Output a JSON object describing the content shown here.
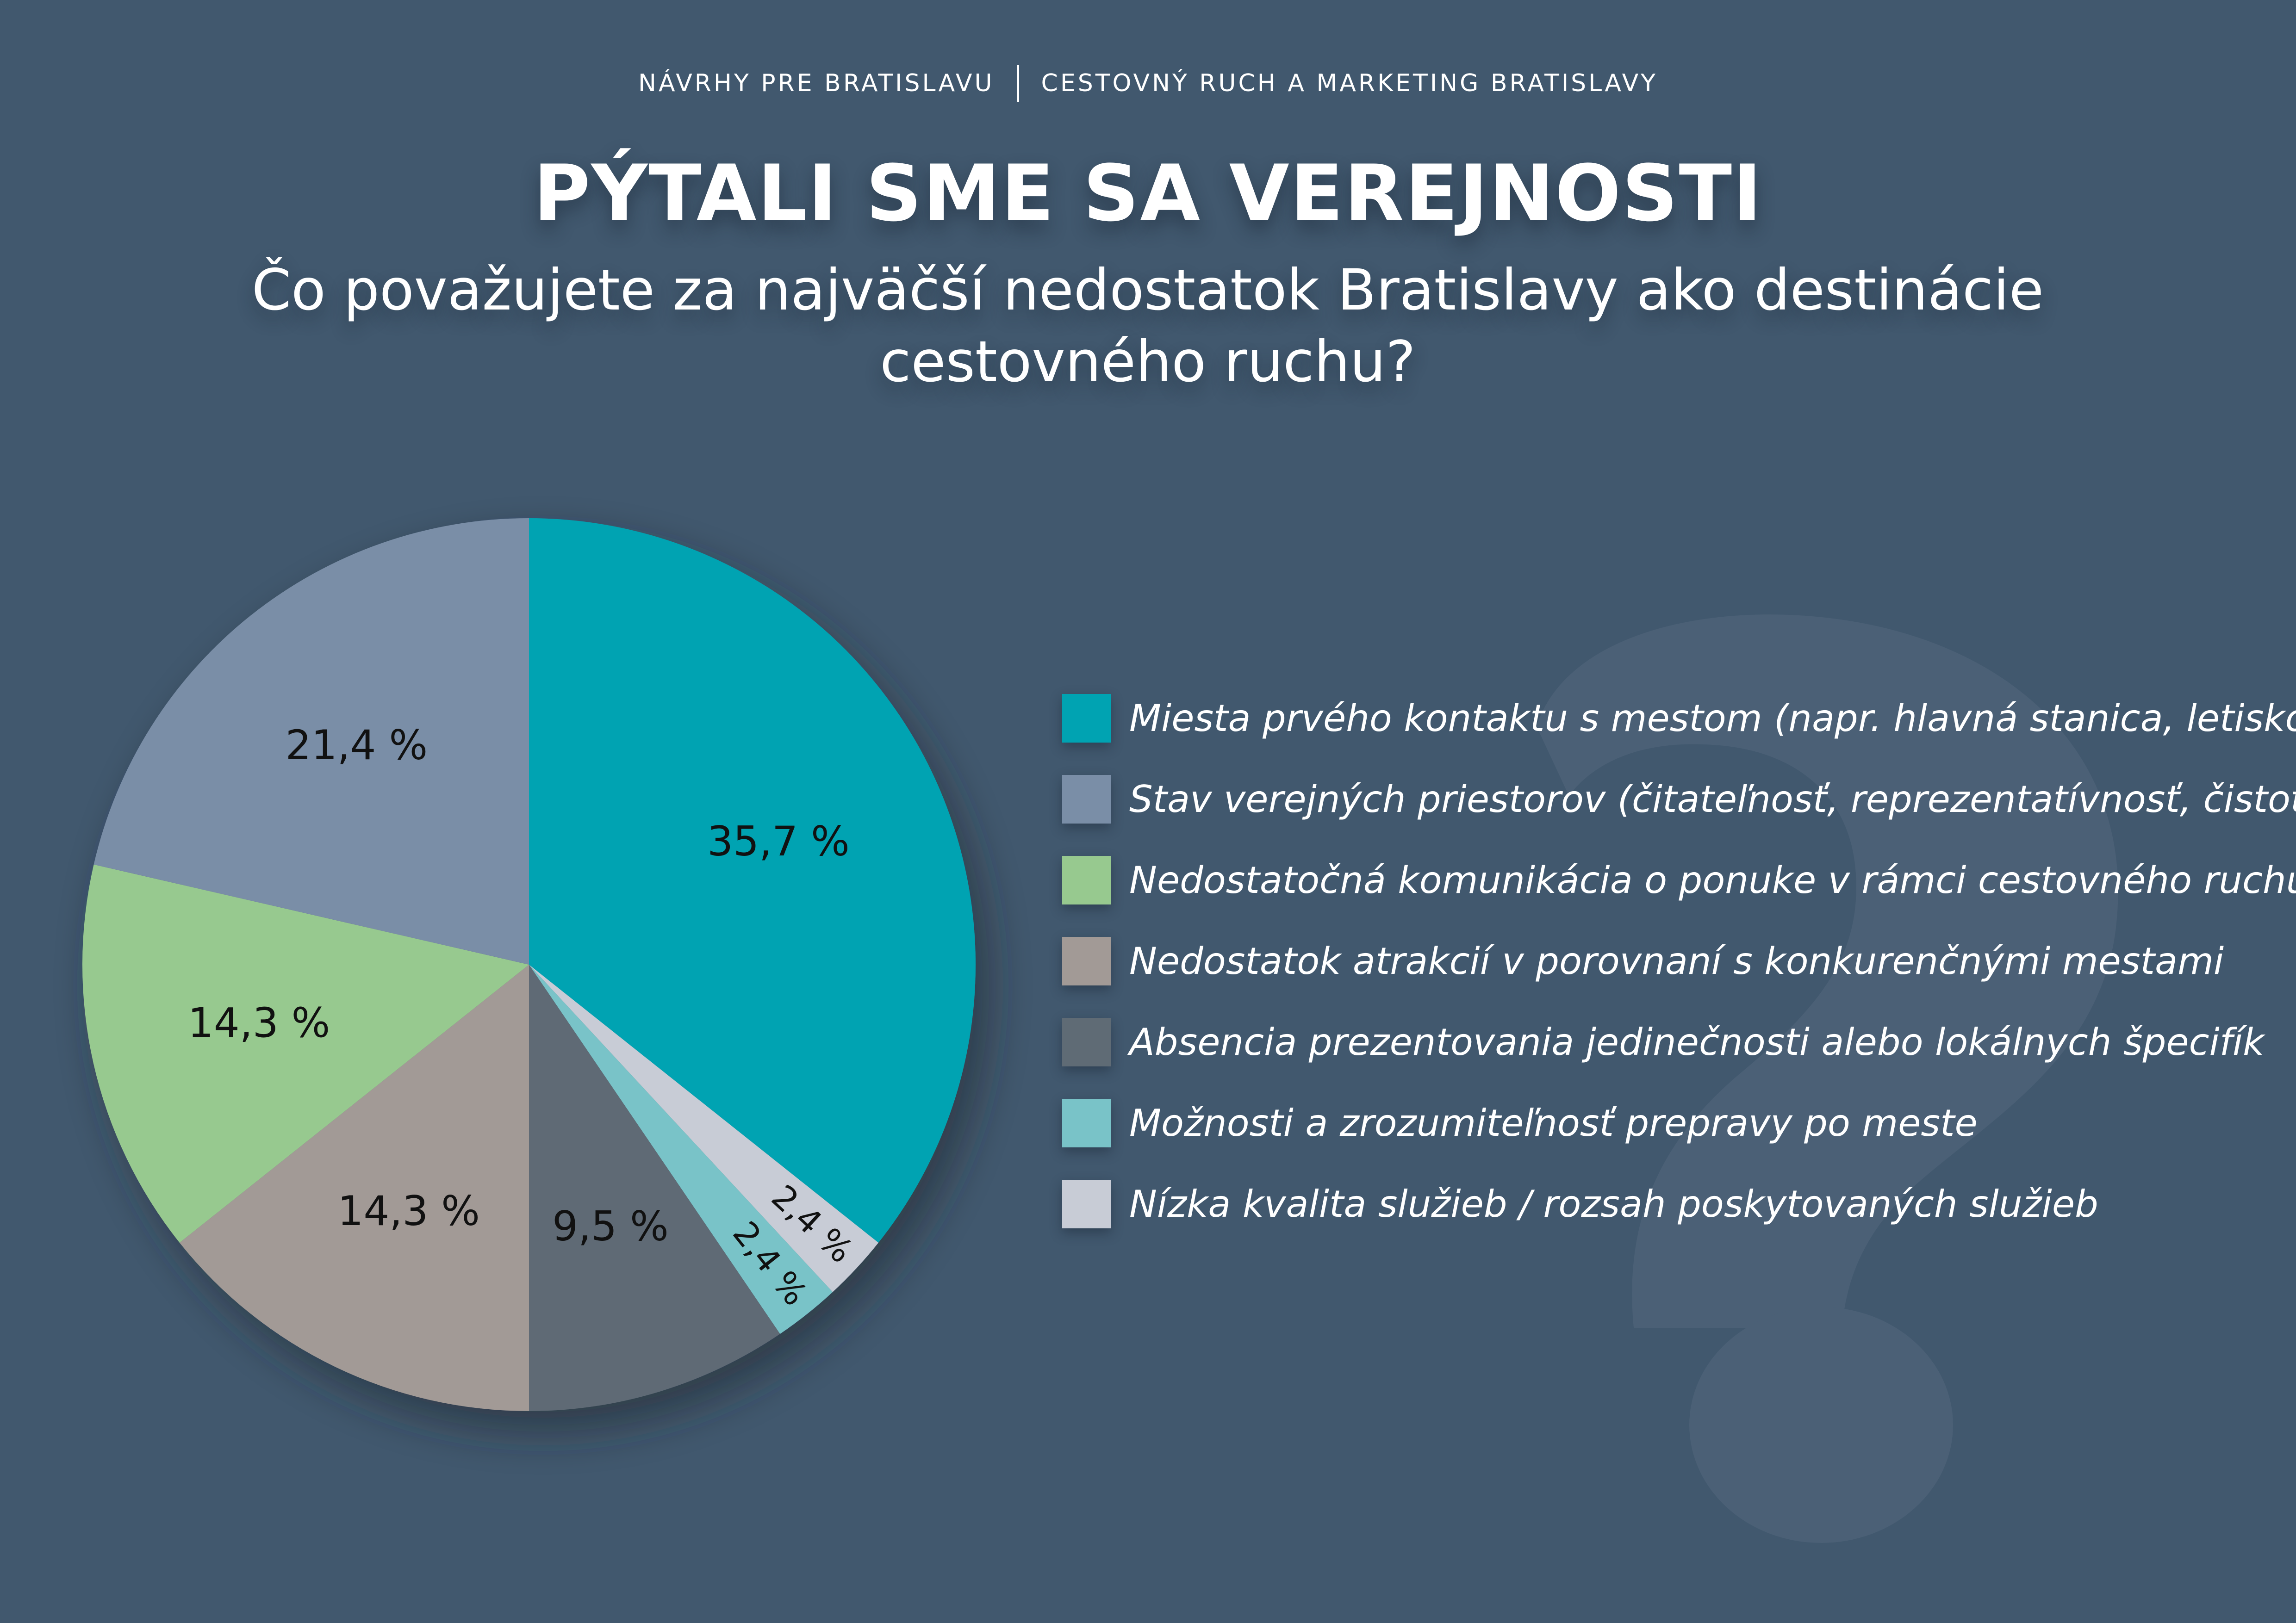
{
  "header": {
    "left": "NÁVRHY PRE BRATISLAVU",
    "right": "CESTOVNÝ RUCH A MARKETING BRATISLAVY"
  },
  "title": "PÝTALI SME SA VEREJNOSTI",
  "question": "Čo považujete za najväčší nedostatok Bratislavy ako destinácie cestovného ruchu?",
  "chart_data": {
    "type": "pie",
    "title": "",
    "value_suffix": " %",
    "series": [
      {
        "values": [
          {
            "label": "Miesta prvého kontaktu s mestom (napr. hlavná stanica, letisko, ...)",
            "value": 35.7,
            "display": "35,7 %",
            "color": "#00a3b2"
          },
          {
            "label": "Nízka kvalita služieb / rozsah  poskytovaných služieb",
            "value": 2.4,
            "display": "2,4 %",
            "color": "#c8ccd6"
          },
          {
            "label": "Možnosti a zrozumiteľnosť prepravy po meste",
            "value": 2.4,
            "display": "2,4 %",
            "color": "#79c3c8"
          },
          {
            "label": "Absencia prezentovania jedinečnosti alebo lokálnych špecifík",
            "value": 9.5,
            "display": "9,5 %",
            "color": "#5f6b75"
          },
          {
            "label": "Nedostatok atrakcií v porovnaní s konkurenčnými mestami",
            "value": 14.3,
            "display": "14,3 %",
            "color": "#a29a96"
          },
          {
            "label": "Nedostatočná komunikácia o ponuke v rámci cestovného ruchu",
            "value": 14.3,
            "display": "14,3 %",
            "color": "#97c98f"
          },
          {
            "label": "Stav verejných priestorov (čitateľnosť, reprezentatívnosť, čistota, ...)",
            "value": 21.4,
            "display": "21,4 %",
            "color": "#7a8ea7"
          }
        ]
      }
    ],
    "legend": {
      "position": "right",
      "items": [
        {
          "label": "Miesta prvého kontaktu s mestom (napr. hlavná stanica, letisko, ...)",
          "color": "#00a3b2"
        },
        {
          "label": "Stav verejných priestorov (čitateľnosť, reprezentatívnosť, čistota, ...)",
          "color": "#7a8ea7"
        },
        {
          "label": "Nedostatočná komunikácia o ponuke v rámci cestovného ruchu",
          "color": "#97c98f"
        },
        {
          "label": "Nedostatok atrakcií v porovnaní s konkurenčnými mestami",
          "color": "#a29a96"
        },
        {
          "label": "Absencia prezentovania jedinečnosti alebo lokálnych špecifík",
          "color": "#5f6b75"
        },
        {
          "label": "Možnosti a zrozumiteľnosť prepravy po meste",
          "color": "#79c3c8"
        },
        {
          "label": "Nízka kvalita služieb / rozsah  poskytovaných služieb",
          "color": "#c8ccd6"
        }
      ]
    }
  },
  "colors": {
    "background": "#41586e",
    "background_mark": "#4b6076",
    "text": "#ffffff",
    "slice_label": "#111111"
  },
  "decor": {
    "background_icon": "question-mark-icon"
  }
}
